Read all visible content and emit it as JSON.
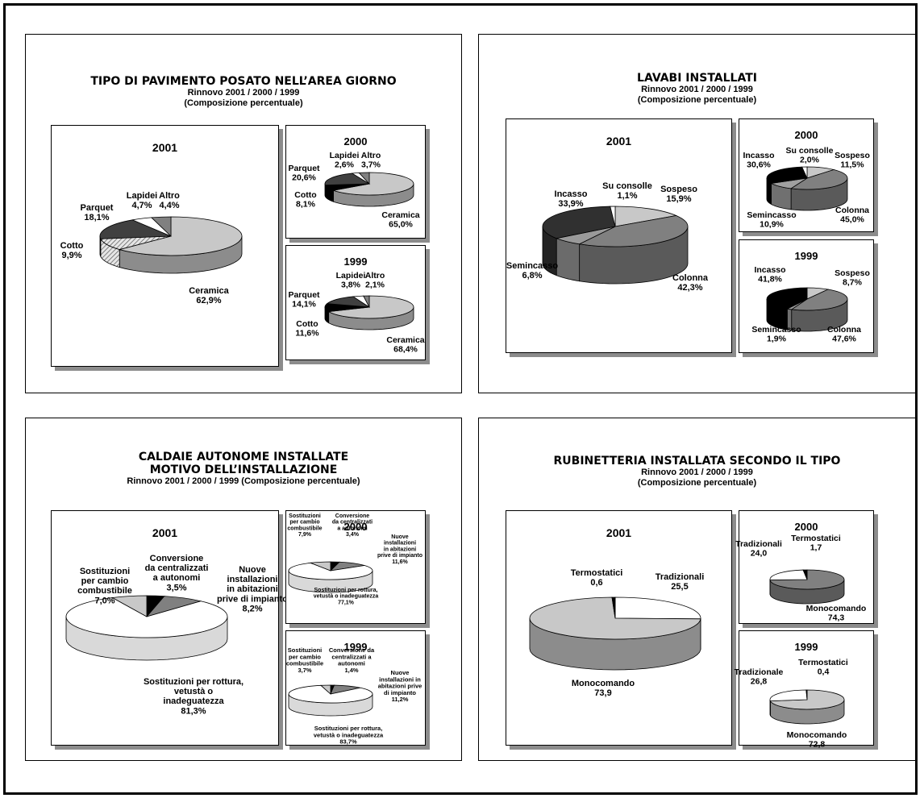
{
  "panels": [
    {
      "id": "pavimento",
      "title_lines": [
        "TIPO DI PAVIMENTO POSATO NELL’AREA GIORNO"
      ],
      "subtitle_lines": [
        "Rinnovo 2001 / 2000 / 1999",
        "(Composizione percentuale)"
      ]
    },
    {
      "id": "lavabi",
      "title_lines": [
        "LAVABI INSTALLATI"
      ],
      "subtitle_lines": [
        "Rinnovo 2001 / 2000 / 1999",
        "(Composizione percentuale)"
      ]
    },
    {
      "id": "caldaie",
      "title_lines": [
        "CALDAIE AUTONOME INSTALLATE",
        "MOTIVO DELL’INSTALLAZIONE"
      ],
      "subtitle_lines": [
        "Rinnovo  2001 / 2000 / 1999 (Composizione percentuale)"
      ]
    },
    {
      "id": "rubinetteria",
      "title_lines": [
        "RUBINETTERIA INSTALLATA SECONDO IL TIPO"
      ],
      "subtitle_lines": [
        "Rinnovo 2001 / 2000 / 1999",
        "(Composizione percentuale)"
      ]
    }
  ],
  "colors": {
    "light_gray": "#c8c8c8",
    "mid_gray": "#808080",
    "dark_gray": "#404040",
    "black": "#000000",
    "white": "#ffffff",
    "shadow": "#8c8c8c"
  },
  "chart_data": [
    {
      "type": "pie",
      "panel": "pavimento",
      "year": "2001",
      "unit": "%",
      "slices": [
        {
          "label": [
            "Ceramica"
          ],
          "value_text": "62,9%",
          "value": 62.9,
          "color": "#c8c8c8"
        },
        {
          "label": [
            "Cotto"
          ],
          "value_text": "9,9%",
          "value": 9.9,
          "color": "#d8d8d8",
          "pattern": "hatch"
        },
        {
          "label": [
            "Parquet"
          ],
          "value_text": "18,1%",
          "value": 18.1,
          "color": "#404040"
        },
        {
          "label": [
            "Lapidei"
          ],
          "value_text": "4,7%",
          "value": 4.7,
          "color": "#ffffff"
        },
        {
          "label": [
            "Altro"
          ],
          "value_text": "4,4%",
          "value": 4.4,
          "color": "#808080"
        }
      ]
    },
    {
      "type": "pie",
      "panel": "pavimento",
      "year": "2000",
      "unit": "%",
      "slices": [
        {
          "label": [
            "Ceramica"
          ],
          "value_text": "65,0%",
          "value": 65.0,
          "color": "#c8c8c8"
        },
        {
          "label": [
            "Cotto"
          ],
          "value_text": "8,1%",
          "value": 8.1,
          "color": "#000000"
        },
        {
          "label": [
            "Parquet"
          ],
          "value_text": "20,6%",
          "value": 20.6,
          "color": "#404040"
        },
        {
          "label": [
            "Lapidei"
          ],
          "value_text": "2,6%",
          "value": 2.6,
          "color": "#ffffff"
        },
        {
          "label": [
            "Altro"
          ],
          "value_text": "3,7%",
          "value": 3.7,
          "color": "#808080"
        }
      ]
    },
    {
      "type": "pie",
      "panel": "pavimento",
      "year": "1999",
      "unit": "%",
      "slices": [
        {
          "label": [
            "Ceramica"
          ],
          "value_text": "68,4%",
          "value": 68.4,
          "color": "#c8c8c8"
        },
        {
          "label": [
            "Cotto"
          ],
          "value_text": "11,6%",
          "value": 11.6,
          "color": "#000000"
        },
        {
          "label": [
            "Parquet"
          ],
          "value_text": "14,1%",
          "value": 14.1,
          "color": "#404040"
        },
        {
          "label": [
            "Lapidei"
          ],
          "value_text": "3,8%",
          "value": 3.8,
          "color": "#ffffff"
        },
        {
          "label": [
            "Altro"
          ],
          "value_text": "2,1%",
          "value": 2.1,
          "color": "#808080"
        }
      ]
    },
    {
      "type": "pie",
      "panel": "lavabi",
      "year": "2001",
      "unit": "%",
      "slices": [
        {
          "label": [
            "Sospeso"
          ],
          "value_text": "15,9%",
          "value": 15.9,
          "color": "#c8c8c8"
        },
        {
          "label": [
            "Colonna"
          ],
          "value_text": "42,3%",
          "value": 42.3,
          "color": "#808080"
        },
        {
          "label": [
            "Semincasso"
          ],
          "value_text": "6,8%",
          "value": 6.8,
          "color": "#999999"
        },
        {
          "label": [
            "Incasso"
          ],
          "value_text": "33,9%",
          "value": 33.9,
          "color": "#303030"
        },
        {
          "label": [
            "Su consolle"
          ],
          "value_text": "1,1%",
          "value": 1.1,
          "color": "#ffffff"
        }
      ]
    },
    {
      "type": "pie",
      "panel": "lavabi",
      "year": "2000",
      "unit": "%",
      "slices": [
        {
          "label": [
            "Sospeso"
          ],
          "value_text": "11,5%",
          "value": 11.5,
          "color": "#c8c8c8"
        },
        {
          "label": [
            "Colonna"
          ],
          "value_text": "45,0%",
          "value": 45.0,
          "color": "#808080"
        },
        {
          "label": [
            "Semincasso"
          ],
          "value_text": "10,9%",
          "value": 10.9,
          "color": "#a0a0a0"
        },
        {
          "label": [
            "Incasso"
          ],
          "value_text": "30,6%",
          "value": 30.6,
          "color": "#000000"
        },
        {
          "label": [
            "Su consolle"
          ],
          "value_text": "2,0%",
          "value": 2.0,
          "color": "#ffffff"
        }
      ]
    },
    {
      "type": "pie",
      "panel": "lavabi",
      "year": "1999",
      "unit": "%",
      "slices": [
        {
          "label": [
            "Sospeso"
          ],
          "value_text": "8,7%",
          "value": 8.7,
          "color": "#c8c8c8"
        },
        {
          "label": [
            "Colonna"
          ],
          "value_text": "47,6%",
          "value": 47.6,
          "color": "#808080"
        },
        {
          "label": [
            "Semincasso"
          ],
          "value_text": "1,9%",
          "value": 1.9,
          "color": "#a0a0a0"
        },
        {
          "label": [
            "Incasso"
          ],
          "value_text": "41,8%",
          "value": 41.8,
          "color": "#000000"
        }
      ]
    },
    {
      "type": "pie",
      "panel": "caldaie",
      "year": "2001",
      "unit": "%",
      "slices": [
        {
          "label": [
            "Conversione",
            "da centralizzati",
            "a autonomi"
          ],
          "value_text": "3,5%",
          "value": 3.5,
          "color": "#000000"
        },
        {
          "label": [
            "Nuove",
            "installazioni",
            "in abitazioni",
            "prive di impianto"
          ],
          "value_text": "8,2%",
          "value": 8.2,
          "color": "#808080"
        },
        {
          "label": [
            "Sostituzioni per rottura,",
            "vetustà o",
            "inadeguatezza"
          ],
          "value_text": "81,3%",
          "value": 81.3,
          "color": "#ffffff"
        },
        {
          "label": [
            "Sostituzioni",
            "per cambio",
            "combustibile"
          ],
          "value_text": "7,0%",
          "value": 7.0,
          "color": "#c8c8c8"
        }
      ]
    },
    {
      "type": "pie",
      "panel": "caldaie",
      "year": "2000",
      "unit": "%",
      "slices": [
        {
          "label": [
            "Conversione",
            "da centralizzati",
            "a autonomi"
          ],
          "value_text": "3,4%",
          "value": 3.4,
          "color": "#000000"
        },
        {
          "label": [
            "Nuove",
            "installazioni",
            "in abitazioni",
            "prive di impianto"
          ],
          "value_text": "11,6%",
          "value": 11.6,
          "color": "#808080"
        },
        {
          "label": [
            "Sostituzioni per rottura,",
            "vetustà o inadeguatezza"
          ],
          "value_text": "77,1%",
          "value": 77.1,
          "color": "#ffffff"
        },
        {
          "label": [
            "Sostituzioni",
            "per cambio",
            "combustibile"
          ],
          "value_text": "7,9%",
          "value": 7.9,
          "color": "#c8c8c8"
        }
      ]
    },
    {
      "type": "pie",
      "panel": "caldaie",
      "year": "1999",
      "unit": "%",
      "slices": [
        {
          "label": [
            "Conversione da",
            "centralizzati a",
            "autonomi"
          ],
          "value_text": "1,4%",
          "value": 1.4,
          "color": "#000000"
        },
        {
          "label": [
            "Nuove",
            "installazioni in",
            "abitazioni prive",
            "di impianto"
          ],
          "value_text": "11,2%",
          "value": 11.2,
          "color": "#808080"
        },
        {
          "label": [
            "Sostituzioni per rottura,",
            "vetustà o inadeguatezza"
          ],
          "value_text": "83,7%",
          "value": 83.7,
          "color": "#ffffff"
        },
        {
          "label": [
            "Sostituzioni",
            "per cambio",
            "combustibile"
          ],
          "value_text": "3,7%",
          "value": 3.7,
          "color": "#c8c8c8"
        }
      ]
    },
    {
      "type": "pie",
      "panel": "rubinetteria",
      "year": "2001",
      "unit": "",
      "slices": [
        {
          "label": [
            "Tradizionali"
          ],
          "value_text": "25,5",
          "value": 25.5,
          "color": "#ffffff"
        },
        {
          "label": [
            "Monocomando"
          ],
          "value_text": "73,9",
          "value": 73.9,
          "color": "#c8c8c8"
        },
        {
          "label": [
            "Termostatici"
          ],
          "value_text": "0,6",
          "value": 0.6,
          "color": "#000000"
        }
      ]
    },
    {
      "type": "pie",
      "panel": "rubinetteria",
      "year": "2000",
      "unit": "",
      "slices": [
        {
          "label": [
            "Monocomando"
          ],
          "value_text": "74,3",
          "value": 74.3,
          "color": "#808080"
        },
        {
          "label": [
            "Tradizionali"
          ],
          "value_text": "24,0",
          "value": 24.0,
          "color": "#ffffff"
        },
        {
          "label": [
            "Termostatici"
          ],
          "value_text": "1,7",
          "value": 1.7,
          "color": "#000000"
        }
      ]
    },
    {
      "type": "pie",
      "panel": "rubinetteria",
      "year": "1999",
      "unit": "",
      "slices": [
        {
          "label": [
            "Monocomando"
          ],
          "value_text": "72,8",
          "value": 72.8,
          "color": "#c8c8c8"
        },
        {
          "label": [
            "Tradizionale"
          ],
          "value_text": "26,8",
          "value": 26.8,
          "color": "#ffffff"
        },
        {
          "label": [
            "Termostatici"
          ],
          "value_text": "0,4",
          "value": 0.4,
          "color": "#000000"
        }
      ]
    }
  ]
}
